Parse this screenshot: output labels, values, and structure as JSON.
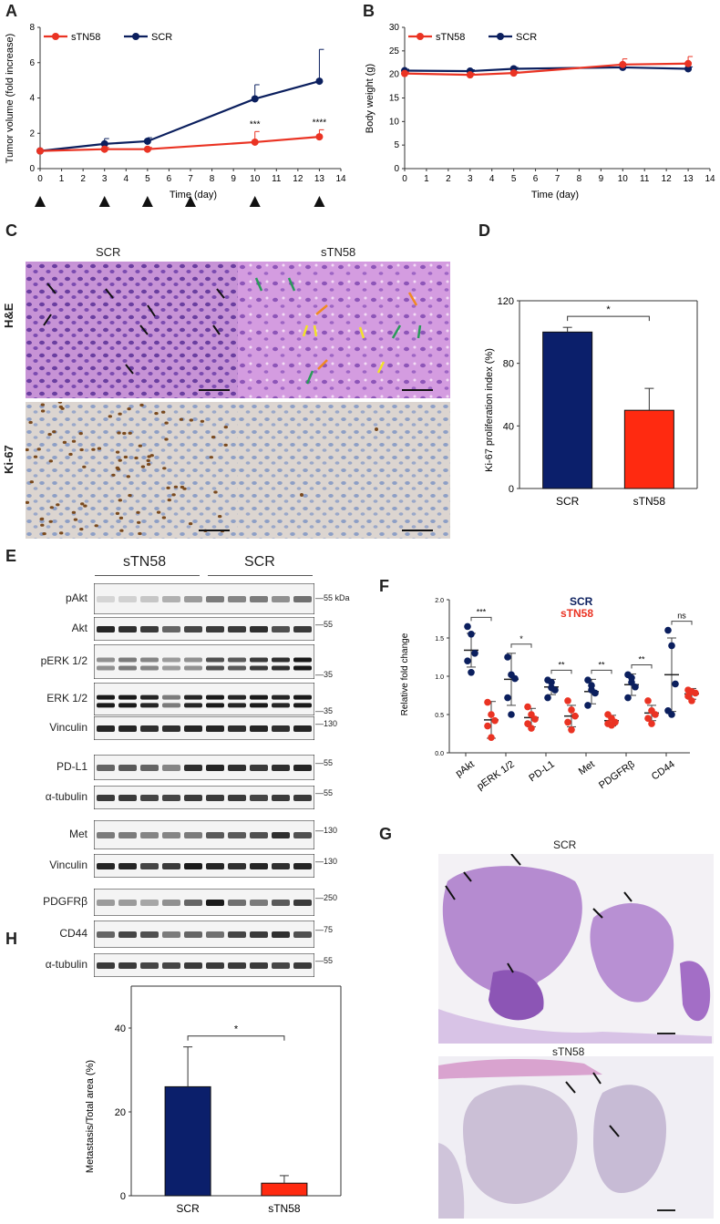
{
  "panels": {
    "A": "A",
    "B": "B",
    "C": "C",
    "D": "D",
    "E": "E",
    "F": "F",
    "G": "G",
    "H": "H"
  },
  "colors": {
    "scr": "#0b1f5e",
    "stn": "#ea3323",
    "bar_scr": "#0b1f6b",
    "bar_stn": "#ff2a10"
  },
  "chart_data": [
    {
      "panel": "A",
      "type": "line",
      "ylabel": "Tumor volume (fold increase)",
      "xlabel": "Time (day)",
      "xlim": [
        0,
        14
      ],
      "ylim": [
        0,
        8
      ],
      "xticks": [
        "0",
        "1",
        "2",
        "3",
        "4",
        "5",
        "6",
        "7",
        "8",
        "9",
        "10",
        "11",
        "12",
        "13",
        "14"
      ],
      "yticks": [
        "0",
        "2",
        "4",
        "6",
        "8"
      ],
      "legend": [
        "sTN58",
        "SCR"
      ],
      "legend_position": "top-left",
      "series": [
        {
          "name": "sTN58",
          "x": [
            0,
            3,
            5,
            10,
            13
          ],
          "y": [
            1.0,
            1.1,
            1.1,
            1.5,
            1.8
          ],
          "err": [
            0,
            0.1,
            0.1,
            0.6,
            0.4
          ]
        },
        {
          "name": "SCR",
          "x": [
            0,
            3,
            5,
            10,
            13
          ],
          "y": [
            1.0,
            1.4,
            1.55,
            3.95,
            4.95
          ],
          "err": [
            0,
            0.3,
            0.2,
            0.8,
            1.8
          ]
        }
      ],
      "annotations": [
        {
          "x": 10,
          "text": "***"
        },
        {
          "x": 13,
          "text": "****"
        }
      ],
      "treatment_days": [
        0,
        3,
        5,
        7,
        10,
        13
      ]
    },
    {
      "panel": "B",
      "type": "line",
      "ylabel": "Body weight (g)",
      "xlabel": "Time (day)",
      "xlim": [
        0,
        14
      ],
      "ylim": [
        0,
        30
      ],
      "xticks": [
        "0",
        "1",
        "2",
        "3",
        "4",
        "5",
        "6",
        "7",
        "8",
        "9",
        "10",
        "11",
        "12",
        "13",
        "14"
      ],
      "yticks": [
        "0",
        "5",
        "10",
        "15",
        "20",
        "25",
        "30"
      ],
      "legend": [
        "sTN58",
        "SCR"
      ],
      "legend_position": "top-left",
      "series": [
        {
          "name": "sTN58",
          "x": [
            0,
            3,
            5,
            10,
            13
          ],
          "y": [
            20.2,
            19.9,
            20.3,
            22.1,
            22.3
          ],
          "err": [
            0.3,
            0.3,
            0.3,
            1.2,
            1.5
          ]
        },
        {
          "name": "SCR",
          "x": [
            0,
            3,
            5,
            10,
            13
          ],
          "y": [
            20.8,
            20.7,
            21.2,
            21.5,
            21.2
          ],
          "err": [
            0.3,
            0.3,
            0.3,
            0.5,
            0.4
          ]
        }
      ]
    },
    {
      "panel": "D",
      "type": "bar",
      "ylabel": "Ki-67 proliferation index (%)",
      "categories": [
        "SCR",
        "sTN58"
      ],
      "values": [
        100,
        50
      ],
      "err": [
        3,
        14
      ],
      "ylim": [
        0,
        120
      ],
      "yticks": [
        "0",
        "40",
        "80",
        "120"
      ],
      "significance": "*"
    },
    {
      "panel": "F",
      "type": "scatter",
      "ylabel": "Relative fold change",
      "categories": [
        "pAkt",
        "pERK 1/2",
        "PD-L1",
        "Met",
        "PDGFRβ",
        "CD44"
      ],
      "ylim": [
        0,
        2
      ],
      "yticks": [
        "0.0",
        "0.5",
        "1.0",
        "1.5",
        "2.0"
      ],
      "legend": [
        "SCR",
        "sTN58"
      ],
      "series": [
        {
          "name": "SCR",
          "means": [
            1.34,
            0.96,
            0.86,
            0.8,
            0.89,
            1.02
          ],
          "sd": [
            0.22,
            0.34,
            0.1,
            0.16,
            0.14,
            0.48
          ],
          "points": [
            [
              1.65,
              1.55,
              1.3,
              1.2,
              1.05
            ],
            [
              1.25,
              1.02,
              0.97,
              0.72,
              0.5
            ],
            [
              0.95,
              0.85,
              0.82,
              0.72,
              0.92
            ],
            [
              0.95,
              0.82,
              0.78,
              0.62,
              0.88
            ],
            [
              1.02,
              0.92,
              0.86,
              0.72,
              0.98
            ],
            [
              1.6,
              1.4,
              0.9,
              0.55,
              0.5
            ]
          ]
        },
        {
          "name": "sTN58",
          "means": [
            0.43,
            0.46,
            0.48,
            0.42,
            0.52,
            0.77
          ],
          "sd": [
            0.24,
            0.12,
            0.14,
            0.07,
            0.1,
            0.07
          ],
          "points": [
            [
              0.66,
              0.5,
              0.42,
              0.35,
              0.2
            ],
            [
              0.6,
              0.5,
              0.44,
              0.38,
              0.32
            ],
            [
              0.68,
              0.56,
              0.48,
              0.4,
              0.3
            ],
            [
              0.5,
              0.45,
              0.4,
              0.38,
              0.36
            ],
            [
              0.68,
              0.55,
              0.5,
              0.45,
              0.38
            ],
            [
              0.82,
              0.8,
              0.78,
              0.74,
              0.68
            ]
          ]
        }
      ],
      "significance": [
        "***",
        "*",
        "**",
        "**",
        "**",
        "ns"
      ]
    },
    {
      "panel": "H",
      "type": "bar",
      "ylabel": "Metastasis/Total area (%)",
      "categories": [
        "SCR",
        "sTN58"
      ],
      "values": [
        26,
        3
      ],
      "err": [
        9.5,
        1.8
      ],
      "ylim": [
        0,
        50
      ],
      "yticks": [
        "0",
        "20",
        "40"
      ],
      "significance": "*"
    }
  ],
  "panelC": {
    "col_scr": "SCR",
    "col_stn": "sTN58",
    "row_he": "H&E",
    "row_ki": "Ki-67"
  },
  "panelE": {
    "group_stn": "sTN58",
    "group_scr": "SCR",
    "rows": [
      {
        "label": "pAkt",
        "marker": "55 kDa"
      },
      {
        "label": "Akt",
        "marker": "55"
      },
      {
        "label": "pERK 1/2",
        "marker": "35"
      },
      {
        "label": "ERK 1/2",
        "marker": "35"
      },
      {
        "label": "Vinculin",
        "marker": "130"
      },
      {
        "label": "PD-L1",
        "marker": "55"
      },
      {
        "label": "α-tubulin",
        "marker": "55"
      },
      {
        "label": "Met",
        "marker": "130"
      },
      {
        "label": "Vinculin",
        "marker": "130"
      },
      {
        "label": "PDGFRβ",
        "marker": "250"
      },
      {
        "label": "CD44",
        "marker": "75"
      },
      {
        "label": "α-tubulin",
        "marker": "55"
      }
    ]
  },
  "panelG": {
    "top": "SCR",
    "bottom": "sTN58"
  }
}
